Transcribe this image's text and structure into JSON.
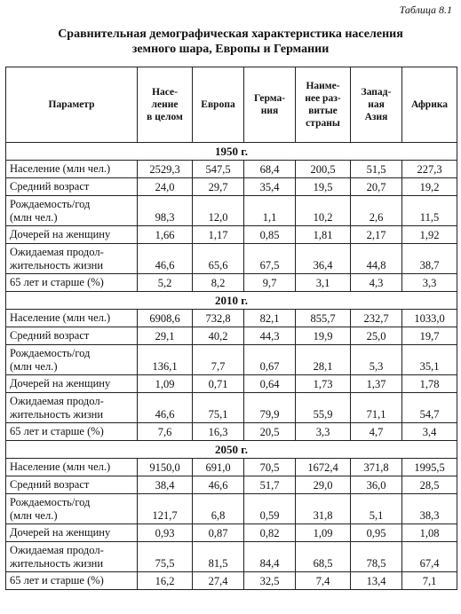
{
  "table_label": "Таблица 8.1",
  "title_lines": [
    "Сравнительная демографическая характеристика населения",
    "земного шара, Европы и Германии"
  ],
  "headers": [
    "Параметр",
    "Насе-\nление\nв целом",
    "Европа",
    "Герма-\nния",
    "Наиме-\nнее раз-\nвитые\nстраны",
    "Запад-\nная\nАзия",
    "Африка"
  ],
  "sections": [
    {
      "year": "1950 г.",
      "rows": [
        {
          "param": "Население (млн чел.)",
          "values": [
            "2529,3",
            "547,5",
            "68,4",
            "200,5",
            "51,5",
            "227,3"
          ]
        },
        {
          "param": "Средний возраст",
          "values": [
            "24,0",
            "29,7",
            "35,4",
            "19,5",
            "20,7",
            "19,2"
          ]
        },
        {
          "param": "Рождаемость/год\n(млн чел.)",
          "values": [
            "98,3",
            "12,0",
            "1,1",
            "10,2",
            "2,6",
            "11,5"
          ]
        },
        {
          "param": "Дочерей на женщину",
          "values": [
            "1,66",
            "1,17",
            "0,85",
            "1,81",
            "2,17",
            "1,92"
          ]
        },
        {
          "param": "Ожидаемая продол-\nжительность жизни",
          "values": [
            "46,6",
            "65,6",
            "67,5",
            "36,4",
            "44,8",
            "38,7"
          ]
        },
        {
          "param": "65 лет и старше (%)",
          "values": [
            "5,2",
            "8,2",
            "9,7",
            "3,1",
            "4,3",
            "3,3"
          ]
        }
      ]
    },
    {
      "year": "2010 г.",
      "rows": [
        {
          "param": "Население (млн чел.)",
          "values": [
            "6908,6",
            "732,8",
            "82,1",
            "855,7",
            "232,7",
            "1033,0"
          ]
        },
        {
          "param": "Средний возраст",
          "values": [
            "29,1",
            "40,2",
            "44,3",
            "19,9",
            "25,0",
            "19,7"
          ]
        },
        {
          "param": "Рождаемость/год\n(млн чел.)",
          "values": [
            "136,1",
            "7,7",
            "0,67",
            "28,1",
            "5,3",
            "35,1"
          ]
        },
        {
          "param": "Дочерей на женщину",
          "values": [
            "1,09",
            "0,71",
            "0,64",
            "1,73",
            "1,37",
            "1,78"
          ]
        },
        {
          "param": "Ожидаемая продол-\nжительность жизни",
          "values": [
            "46,6",
            "75,1",
            "79,9",
            "55,9",
            "71,1",
            "54,7"
          ]
        },
        {
          "param": "65 лет и старше (%)",
          "values": [
            "7,6",
            "16,3",
            "20,5",
            "3,3",
            "4,7",
            "3,4"
          ]
        }
      ]
    },
    {
      "year": "2050 г.",
      "rows": [
        {
          "param": "Население (млн чел.)",
          "values": [
            "9150,0",
            "691,0",
            "70,5",
            "1672,4",
            "371,8",
            "1995,5"
          ]
        },
        {
          "param": "Средний возраст",
          "values": [
            "38,4",
            "46,6",
            "51,7",
            "29,0",
            "36,0",
            "28,5"
          ]
        },
        {
          "param": "Рождаемость/год\n(млн чел.)",
          "values": [
            "121,7",
            "6,8",
            "0,59",
            "31,8",
            "5,1",
            "38,3"
          ]
        },
        {
          "param": "Дочерей на женщину",
          "values": [
            "0,93",
            "0,87",
            "0,82",
            "1,09",
            "0,95",
            "1,08"
          ]
        },
        {
          "param": "Ожидаемая продол-\nжительность жизни",
          "values": [
            "75,5",
            "81,5",
            "84,4",
            "68,5",
            "78,5",
            "67,4"
          ]
        },
        {
          "param": "65 лет и старше (%)",
          "values": [
            "16,2",
            "27,4",
            "32,5",
            "7,4",
            "13,4",
            "7,1"
          ]
        }
      ]
    }
  ]
}
